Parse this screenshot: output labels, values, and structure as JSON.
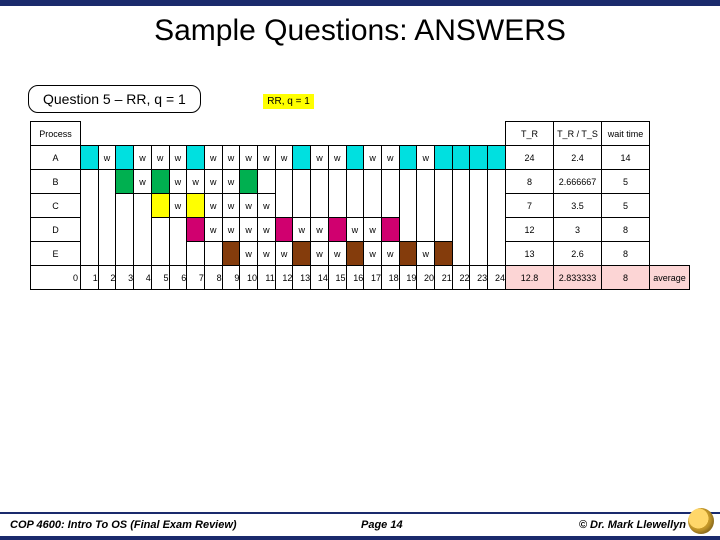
{
  "title": "Sample Questions: ANSWERS",
  "subtitle": "Question 5 – RR, q = 1",
  "tag": "RR, q = 1",
  "header": {
    "process": "Process",
    "tr": "T_R",
    "ratio": "T_R / T_S",
    "wait": "wait time"
  },
  "rows": [
    {
      "p": "A",
      "tr": "24",
      "ratio": "2.4",
      "wait": "14",
      "cells": [
        {
          "c": "run-a"
        },
        {
          "t": "w"
        },
        {
          "c": "run-a"
        },
        {
          "t": "w"
        },
        {
          "t": "w"
        },
        {
          "t": "w"
        },
        {
          "c": "run-a"
        },
        {
          "t": "w"
        },
        {
          "t": "w"
        },
        {
          "t": "w"
        },
        {
          "t": "w"
        },
        {
          "t": "w"
        },
        {
          "c": "run-a"
        },
        {
          "t": "w"
        },
        {
          "t": "w"
        },
        {
          "c": "run-a"
        },
        {
          "t": "w"
        },
        {
          "t": "w"
        },
        {
          "c": "run-a"
        },
        {
          "t": "w"
        },
        {
          "c": "run-a"
        },
        {
          "c": "run-a"
        },
        {
          "c": "run-a"
        },
        {
          "c": "run-a"
        }
      ]
    },
    {
      "p": "B",
      "tr": "8",
      "ratio": "2.666667",
      "wait": "5",
      "cells": [
        {
          "nb": 1
        },
        {
          "nb": 1
        },
        {
          "c": "run-b"
        },
        {
          "t": "w"
        },
        {
          "c": "run-b"
        },
        {
          "t": "w"
        },
        {
          "t": "w"
        },
        {
          "t": "w"
        },
        {
          "t": "w"
        },
        {
          "c": "run-b"
        },
        {
          "nb": 1
        },
        {
          "nb": 1
        },
        {
          "nb": 1
        },
        {
          "nb": 1
        },
        {
          "nb": 1
        },
        {
          "nb": 1
        },
        {
          "nb": 1
        },
        {
          "nb": 1
        },
        {
          "nb": 1
        },
        {
          "nb": 1
        },
        {
          "nb": 1
        },
        {
          "nb": 1
        },
        {
          "nb": 1
        },
        {
          "nb": 1
        }
      ]
    },
    {
      "p": "C",
      "tr": "7",
      "ratio": "3.5",
      "wait": "5",
      "cells": [
        {
          "nb": 1
        },
        {
          "nb": 1
        },
        {
          "nb": 1
        },
        {
          "nb": 1
        },
        {
          "c": "run-c"
        },
        {
          "t": "w"
        },
        {
          "c": "run-c"
        },
        {
          "t": "w"
        },
        {
          "t": "w"
        },
        {
          "t": "w"
        },
        {
          "t": "w"
        },
        {
          "nb": 1
        },
        {
          "nb": 1
        },
        {
          "nb": 1
        },
        {
          "nb": 1
        },
        {
          "nb": 1
        },
        {
          "nb": 1
        },
        {
          "nb": 1
        },
        {
          "nb": 1
        },
        {
          "nb": 1
        },
        {
          "nb": 1
        },
        {
          "nb": 1
        },
        {
          "nb": 1
        },
        {
          "nb": 1
        }
      ]
    },
    {
      "p": "D",
      "tr": "12",
      "ratio": "3",
      "wait": "8",
      "cells": [
        {
          "nb": 1
        },
        {
          "nb": 1
        },
        {
          "nb": 1
        },
        {
          "nb": 1
        },
        {
          "nb": 1
        },
        {
          "nb": 1
        },
        {
          "c": "run-d"
        },
        {
          "t": "w"
        },
        {
          "t": "w"
        },
        {
          "t": "w"
        },
        {
          "t": "w"
        },
        {
          "c": "run-d"
        },
        {
          "t": "w"
        },
        {
          "t": "w"
        },
        {
          "c": "run-d"
        },
        {
          "t": "w"
        },
        {
          "t": "w"
        },
        {
          "c": "run-d"
        },
        {
          "nb": 1
        },
        {
          "nb": 1
        },
        {
          "nb": 1
        },
        {
          "nb": 1
        },
        {
          "nb": 1
        },
        {
          "nb": 1
        }
      ]
    },
    {
      "p": "E",
      "tr": "13",
      "ratio": "2.6",
      "wait": "8",
      "cells": [
        {
          "nb": 1
        },
        {
          "nb": 1
        },
        {
          "nb": 1
        },
        {
          "nb": 1
        },
        {
          "nb": 1
        },
        {
          "nb": 1
        },
        {
          "nb": 1
        },
        {
          "nb": 1
        },
        {
          "c": "run-e"
        },
        {
          "t": "w"
        },
        {
          "t": "w"
        },
        {
          "t": "w"
        },
        {
          "c": "run-e"
        },
        {
          "t": "w"
        },
        {
          "t": "w"
        },
        {
          "c": "run-e"
        },
        {
          "t": "w"
        },
        {
          "t": "w"
        },
        {
          "c": "run-e"
        },
        {
          "t": "w"
        },
        {
          "c": "run-e"
        },
        {
          "nb": 1
        },
        {
          "nb": 1
        },
        {
          "nb": 1
        }
      ]
    }
  ],
  "axis": [
    "0",
    "1",
    "2",
    "3",
    "4",
    "5",
    "6",
    "7",
    "8",
    "9",
    "10",
    "11",
    "12",
    "13",
    "14",
    "15",
    "16",
    "17",
    "18",
    "19",
    "20",
    "21",
    "22",
    "23",
    "24"
  ],
  "avg": {
    "tr": "12.8",
    "ratio": "2.833333",
    "wait": "8",
    "label": "average"
  },
  "footer": {
    "left": "COP 4600: Intro To OS  (Final Exam Review)",
    "center": "Page 14",
    "right": "© Dr. Mark Llewellyn"
  }
}
